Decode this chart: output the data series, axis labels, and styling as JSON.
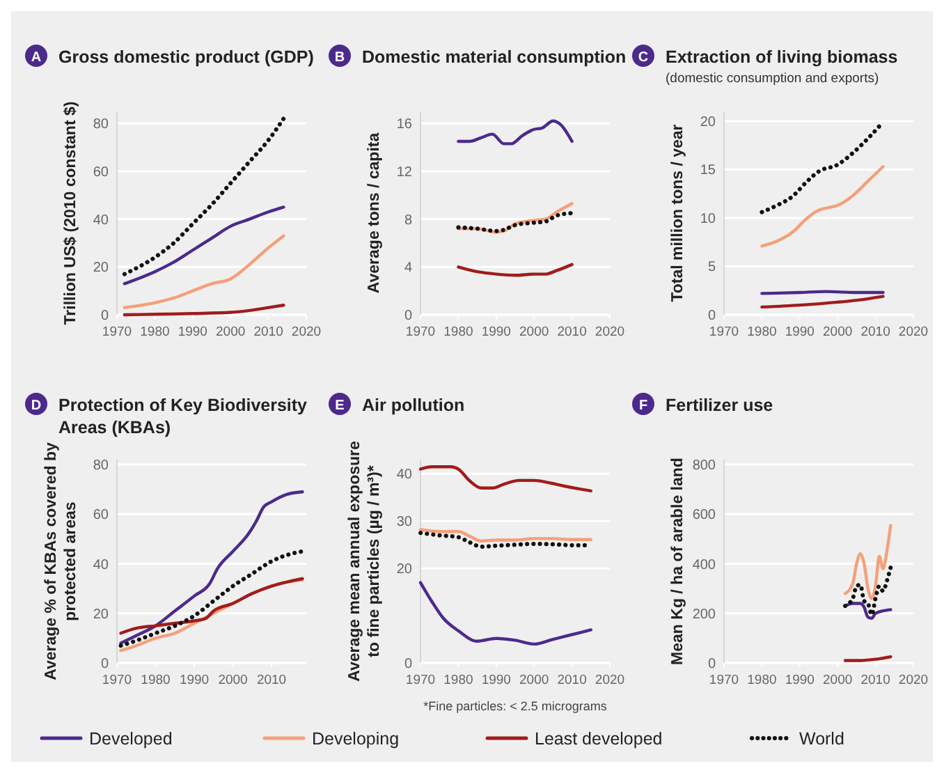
{
  "chart_data": [
    {
      "type": "line",
      "title": "Gross domestic product (GDP)",
      "ylabel": "Trillion US$ (2010 constant $)",
      "annotations": [
        "A"
      ],
      "xlim": [
        1970,
        2020
      ],
      "xticks": [
        1970,
        1980,
        1990,
        2000,
        2010,
        2020
      ],
      "ylim": [
        0,
        85
      ],
      "yticks": [
        0,
        20,
        40,
        60,
        80
      ],
      "grid": "y",
      "legend": "bottom",
      "series": [
        {
          "name": "Developed",
          "color": "#4b2a8c",
          "x": [
            1972,
            1980,
            1985,
            1990,
            1995,
            2000,
            2005,
            2010,
            2014
          ],
          "values": [
            13,
            18,
            22,
            27,
            32,
            37,
            40,
            43,
            45
          ]
        },
        {
          "name": "Developing",
          "color": "#f4a07a",
          "x": [
            1972,
            1980,
            1985,
            1990,
            1995,
            2000,
            2005,
            2010,
            2014
          ],
          "values": [
            3,
            5,
            7,
            10,
            13,
            15,
            21,
            28,
            33
          ]
        },
        {
          "name": "Least developed",
          "color": "#a01c1c",
          "x": [
            1972,
            1980,
            1990,
            2000,
            2005,
            2010,
            2014
          ],
          "values": [
            0,
            0.2,
            0.5,
            1,
            1.8,
            3,
            4
          ]
        },
        {
          "name": "World",
          "color": "#111111",
          "line_style": "dotted",
          "x": [
            1972,
            1980,
            1985,
            1990,
            1995,
            2000,
            2005,
            2010,
            2014
          ],
          "values": [
            17,
            24,
            30,
            38,
            46,
            55,
            64,
            73,
            82
          ]
        }
      ]
    },
    {
      "type": "line",
      "title": "Domestic material consumption",
      "ylabel": "Average tons / capita",
      "annotations": [
        "B"
      ],
      "xlim": [
        1970,
        2020
      ],
      "xticks": [
        1970,
        1980,
        1990,
        2000,
        2010,
        2020
      ],
      "ylim": [
        0,
        17
      ],
      "yticks": [
        0,
        4,
        8,
        12,
        16
      ],
      "grid": "y",
      "series": [
        {
          "color": "#4b2a8c",
          "x": [
            1980,
            1983,
            1986,
            1989,
            1992,
            1994,
            1997,
            2000,
            2002,
            2005,
            2007,
            2010
          ],
          "values": [
            14.5,
            14.5,
            14.8,
            15.1,
            14.3,
            14.3,
            15.0,
            15.5,
            15.6,
            16.2,
            15.9,
            14.5
          ]
        },
        {
          "color": "#f4a07a",
          "x": [
            1980,
            1985,
            1990,
            1992,
            1995,
            2000,
            2003,
            2006,
            2010
          ],
          "values": [
            7.2,
            7.2,
            6.9,
            7.0,
            7.6,
            7.9,
            8.0,
            8.6,
            9.3
          ]
        },
        {
          "color": "#a01c1c",
          "x": [
            1980,
            1985,
            1990,
            1995,
            2000,
            2003,
            2006,
            2010
          ],
          "values": [
            4.0,
            3.6,
            3.4,
            3.3,
            3.4,
            3.4,
            3.7,
            4.2
          ]
        },
        {
          "color": "#111111",
          "line_style": "dotted",
          "x": [
            1980,
            1985,
            1990,
            1992,
            1995,
            2000,
            2003,
            2006,
            2010
          ],
          "values": [
            7.3,
            7.2,
            7.0,
            7.1,
            7.5,
            7.7,
            7.8,
            8.3,
            8.5
          ]
        }
      ]
    },
    {
      "type": "line",
      "title": "Extraction of living biomass",
      "subtitle": "(domestic consumption and exports)",
      "ylabel": "Total million tons / year",
      "annotations": [
        "C"
      ],
      "xlim": [
        1970,
        2020
      ],
      "xticks": [
        1970,
        1980,
        1990,
        2000,
        2010,
        2020
      ],
      "ylim": [
        0,
        21
      ],
      "yticks": [
        0,
        5,
        10,
        15,
        20
      ],
      "grid": "y",
      "series": [
        {
          "color": "#4b2a8c",
          "x": [
            1980,
            1990,
            1997,
            2005,
            2012
          ],
          "values": [
            2.2,
            2.3,
            2.4,
            2.3,
            2.3
          ]
        },
        {
          "color": "#f4a07a",
          "x": [
            1980,
            1984,
            1988,
            1992,
            1995,
            1998,
            2000,
            2004,
            2008,
            2012
          ],
          "values": [
            7.1,
            7.6,
            8.5,
            10.0,
            10.8,
            11.1,
            11.3,
            12.3,
            13.8,
            15.3
          ]
        },
        {
          "color": "#a01c1c",
          "x": [
            1980,
            1990,
            2000,
            2005,
            2012
          ],
          "values": [
            0.8,
            1.0,
            1.3,
            1.5,
            1.9
          ]
        },
        {
          "color": "#111111",
          "line_style": "dotted",
          "x": [
            1980,
            1984,
            1988,
            1992,
            1995,
            2000,
            2004,
            2008,
            2012
          ],
          "values": [
            10.6,
            11.3,
            12.2,
            13.8,
            14.8,
            15.5,
            16.7,
            18.2,
            19.9
          ]
        }
      ]
    },
    {
      "type": "line",
      "title": "Protection of Key Biodiversity Areas (KBAs)",
      "ylabel": "Average % of KBAs covered  by protected areas",
      "annotations": [
        "D"
      ],
      "xlim": [
        1970,
        2019
      ],
      "xticks": [
        1970,
        1980,
        1990,
        2000,
        2010
      ],
      "ylim": [
        0,
        82
      ],
      "yticks": [
        0,
        20,
        40,
        60,
        80
      ],
      "grid": "y",
      "series": [
        {
          "color": "#4b2a8c",
          "x": [
            1971,
            1975,
            1980,
            1985,
            1990,
            1994,
            1996,
            2000,
            2004,
            2006,
            2008,
            2010,
            2014,
            2018
          ],
          "values": [
            8,
            11,
            15,
            21,
            27,
            32,
            38,
            45,
            52,
            57,
            63,
            65,
            68,
            69
          ]
        },
        {
          "color": "#f4a07a",
          "x": [
            1971,
            1975,
            1980,
            1985,
            1990,
            1995,
            2000,
            2005,
            2010,
            2015,
            2018
          ],
          "values": [
            5,
            7,
            10,
            12,
            16,
            20,
            24,
            28,
            31,
            33,
            33.5
          ]
        },
        {
          "color": "#a01c1c",
          "x": [
            1971,
            1975,
            1980,
            1985,
            1990,
            1993,
            1995,
            2000,
            2005,
            2010,
            2015,
            2018
          ],
          "values": [
            12,
            14,
            15,
            16,
            17,
            18,
            21,
            24,
            28,
            31,
            33,
            34
          ]
        },
        {
          "color": "#111111",
          "line_style": "dotted",
          "x": [
            1971,
            1975,
            1980,
            1985,
            1990,
            1995,
            2000,
            2005,
            2010,
            2015,
            2018
          ],
          "values": [
            7,
            9,
            12,
            15,
            19,
            25,
            31,
            36,
            41,
            44,
            45
          ]
        }
      ]
    },
    {
      "type": "line",
      "title": "Air pollution",
      "ylabel": "Average mean annual exposure to fine particles (µg / m³)*",
      "annotations": [
        "E",
        "*Fine particles: < 2.5 micrograms"
      ],
      "xlim": [
        1970,
        2020
      ],
      "xticks": [
        1970,
        1980,
        1990,
        2000,
        2010,
        2020
      ],
      "ylim": [
        0,
        43
      ],
      "yticks": [
        0,
        20,
        30,
        40
      ],
      "grid": "y",
      "series": [
        {
          "color": "#4b2a8c",
          "x": [
            1970,
            1973,
            1976,
            1980,
            1985,
            1990,
            1995,
            2000,
            2005,
            2010,
            2015
          ],
          "values": [
            17,
            13,
            9.5,
            6.8,
            4.6,
            5.2,
            4.8,
            4,
            5,
            6,
            7
          ]
        },
        {
          "color": "#f4a07a",
          "x": [
            1970,
            1975,
            1980,
            1983,
            1986,
            1990,
            1995,
            2000,
            2005,
            2010,
            2015
          ],
          "values": [
            28.2,
            27.8,
            27.8,
            26.8,
            25.8,
            26,
            26,
            26.3,
            26.3,
            26.1,
            26.1
          ]
        },
        {
          "color": "#a01c1c",
          "x": [
            1970,
            1973,
            1978,
            1980,
            1983,
            1986,
            1989,
            1992,
            1996,
            2000,
            2004,
            2008,
            2012,
            2015
          ],
          "values": [
            41,
            41.5,
            41.5,
            41,
            38.5,
            37,
            37,
            37.8,
            38.6,
            38.6,
            38.1,
            37.4,
            36.8,
            36.4
          ]
        },
        {
          "color": "#111111",
          "line_style": "dotted",
          "x": [
            1970,
            1975,
            1980,
            1983,
            1986,
            1990,
            1995,
            2000,
            2005,
            2010,
            2015
          ],
          "values": [
            27.5,
            27,
            26.6,
            25.5,
            24.6,
            24.8,
            25,
            25.2,
            25.1,
            24.9,
            24.9
          ]
        }
      ]
    },
    {
      "type": "line",
      "title": "Fertilizer use",
      "ylabel": "Mean Kg / ha of arable land",
      "annotations": [
        "F"
      ],
      "xlim": [
        1970,
        2020
      ],
      "xticks": [
        1970,
        1980,
        1990,
        2000,
        2010,
        2020
      ],
      "ylim": [
        0,
        820
      ],
      "yticks": [
        0,
        200,
        400,
        600,
        800
      ],
      "grid": "y",
      "series": [
        {
          "color": "#4b2a8c",
          "x": [
            2002,
            2004,
            2006,
            2007,
            2008,
            2009,
            2010,
            2012,
            2014
          ],
          "values": [
            230,
            240,
            240,
            225,
            185,
            180,
            200,
            210,
            215
          ]
        },
        {
          "color": "#f4a07a",
          "x": [
            2002,
            2004,
            2005,
            2006,
            2007,
            2008,
            2009,
            2010,
            2011,
            2012,
            2013,
            2014
          ],
          "values": [
            280,
            320,
            400,
            440,
            400,
            300,
            260,
            310,
            430,
            380,
            450,
            555
          ]
        },
        {
          "color": "#a01c1c",
          "x": [
            2002,
            2006,
            2010,
            2014
          ],
          "values": [
            10,
            10,
            15,
            25
          ]
        },
        {
          "color": "#111111",
          "line_style": "dotted",
          "x": [
            2002,
            2003,
            2004,
            2005,
            2006,
            2007,
            2008,
            2009,
            2010,
            2011,
            2012,
            2013,
            2014
          ],
          "values": [
            230,
            240,
            260,
            310,
            315,
            250,
            240,
            195,
            260,
            310,
            290,
            330,
            385
          ]
        }
      ]
    }
  ]
}
